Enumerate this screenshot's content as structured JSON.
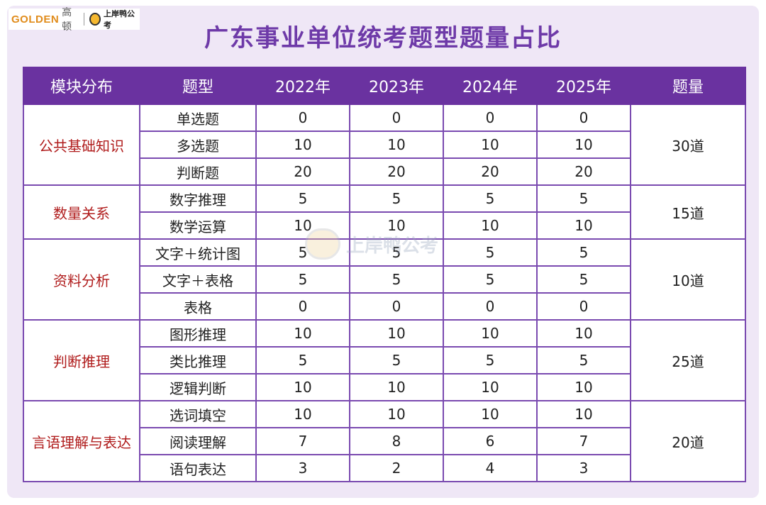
{
  "logo": {
    "brand": "GOLDEN",
    "brand_cn": "高顿",
    "partner": "上岸鸭公考"
  },
  "title": "广东事业单位统考题型题量占比",
  "watermark": "上岸鸭公考",
  "header": [
    "模块分布",
    "题型",
    "2022年",
    "2023年",
    "2024年",
    "2025年",
    "题量"
  ],
  "groups": [
    {
      "module": "公共基础知识",
      "total": "30道",
      "rows": [
        {
          "type": "单选题",
          "v": [
            "0",
            "0",
            "0",
            "0"
          ]
        },
        {
          "type": "多选题",
          "v": [
            "10",
            "10",
            "10",
            "10"
          ]
        },
        {
          "type": "判断题",
          "v": [
            "20",
            "20",
            "20",
            "20"
          ]
        }
      ]
    },
    {
      "module": "数量关系",
      "total": "15道",
      "rows": [
        {
          "type": "数字推理",
          "v": [
            "5",
            "5",
            "5",
            "5"
          ]
        },
        {
          "type": "数学运算",
          "v": [
            "10",
            "10",
            "10",
            "10"
          ]
        }
      ]
    },
    {
      "module": "资料分析",
      "total": "10道",
      "rows": [
        {
          "type": "文字＋统计图",
          "v": [
            "5",
            "5",
            "5",
            "5"
          ]
        },
        {
          "type": "文字＋表格",
          "v": [
            "5",
            "5",
            "5",
            "5"
          ]
        },
        {
          "type": "表格",
          "v": [
            "0",
            "0",
            "0",
            "0"
          ]
        }
      ]
    },
    {
      "module": "判断推理",
      "total": "25道",
      "rows": [
        {
          "type": "图形推理",
          "v": [
            "10",
            "10",
            "10",
            "10"
          ]
        },
        {
          "type": "类比推理",
          "v": [
            "5",
            "5",
            "5",
            "5"
          ]
        },
        {
          "type": "逻辑判断",
          "v": [
            "10",
            "10",
            "10",
            "10"
          ]
        }
      ]
    },
    {
      "module": "言语理解与表达",
      "total": "20道",
      "rows": [
        {
          "type": "选词填空",
          "v": [
            "10",
            "10",
            "10",
            "10"
          ]
        },
        {
          "type": "阅读理解",
          "v": [
            "7",
            "8",
            "6",
            "7"
          ]
        },
        {
          "type": "语句表达",
          "v": [
            "3",
            "2",
            "4",
            "3"
          ]
        }
      ]
    }
  ]
}
